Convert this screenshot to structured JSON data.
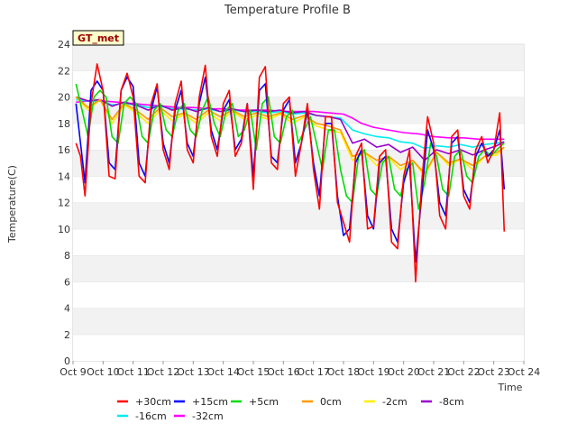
{
  "chart_data": {
    "type": "line",
    "title": "Temperature Profile B",
    "site_label": "GT_met",
    "xlabel": "Time",
    "ylabel": "Temperature(C)",
    "ylim": [
      0,
      24
    ],
    "yticks": [
      0,
      2,
      4,
      6,
      8,
      10,
      12,
      14,
      16,
      18,
      20,
      22,
      24
    ],
    "xlim": [
      9,
      24
    ],
    "xticks": [
      "Oct 9",
      "Oct 10",
      "Oct 11",
      "Oct 12",
      "Oct 13",
      "Oct 14",
      "Oct 15",
      "Oct 16",
      "Oct 17",
      "Oct 18",
      "Oct 19",
      "Oct 20",
      "Oct 21",
      "Oct 22",
      "Oct 23",
      "Oct 24"
    ],
    "grid": "horizontal bands",
    "legend_position": "bottom",
    "x_unit": "day of October",
    "series": [
      {
        "name": "+30cm",
        "color": "#ff0000",
        "x": [
          9.1,
          9.25,
          9.4,
          9.6,
          9.8,
          10.0,
          10.2,
          10.4,
          10.6,
          10.8,
          11.0,
          11.2,
          11.4,
          11.6,
          11.8,
          12.0,
          12.2,
          12.4,
          12.6,
          12.8,
          13.0,
          13.2,
          13.4,
          13.6,
          13.8,
          14.0,
          14.2,
          14.4,
          14.6,
          14.8,
          15.0,
          15.2,
          15.4,
          15.6,
          15.8,
          16.0,
          16.2,
          16.4,
          16.6,
          16.8,
          17.0,
          17.2,
          17.4,
          17.6,
          17.8,
          18.0,
          18.2,
          18.4,
          18.6,
          18.8,
          19.0,
          19.2,
          19.4,
          19.6,
          19.8,
          20.0,
          20.2,
          20.4,
          20.6,
          20.8,
          21.0,
          21.2,
          21.4,
          21.6,
          21.8,
          22.0,
          22.2,
          22.4,
          22.6,
          22.8,
          23.0,
          23.2,
          23.35
        ],
        "y": [
          16.5,
          15.5,
          12.5,
          19.5,
          22.5,
          20.5,
          14.0,
          13.8,
          20.5,
          21.8,
          20.0,
          14.0,
          13.5,
          19.5,
          21.0,
          16.0,
          14.5,
          19.5,
          21.2,
          16.0,
          15.0,
          20.0,
          22.4,
          17.0,
          15.5,
          19.5,
          20.5,
          15.5,
          16.5,
          19.5,
          13.0,
          21.5,
          22.3,
          15.0,
          14.5,
          19.5,
          20.0,
          14.0,
          16.5,
          19.5,
          14.5,
          11.5,
          18.5,
          18.5,
          12.0,
          10.5,
          9.0,
          15.5,
          16.5,
          10.0,
          10.2,
          15.5,
          16.0,
          9.0,
          8.5,
          14.0,
          16.0,
          6.0,
          13.5,
          18.5,
          16.5,
          11.0,
          10.0,
          17.0,
          17.5,
          12.5,
          11.5,
          16.0,
          17.0,
          15.0,
          16.0,
          18.8,
          9.8
        ]
      },
      {
        "name": "+15cm",
        "color": "#0000ff",
        "x": [
          9.1,
          9.25,
          9.4,
          9.6,
          9.8,
          10.0,
          10.2,
          10.4,
          10.6,
          10.8,
          11.0,
          11.2,
          11.4,
          11.6,
          11.8,
          12.0,
          12.2,
          12.4,
          12.6,
          12.8,
          13.0,
          13.2,
          13.4,
          13.6,
          13.8,
          14.0,
          14.2,
          14.4,
          14.6,
          14.8,
          15.0,
          15.2,
          15.4,
          15.6,
          15.8,
          16.0,
          16.2,
          16.4,
          16.6,
          16.8,
          17.0,
          17.2,
          17.4,
          17.6,
          17.8,
          18.0,
          18.2,
          18.4,
          18.6,
          18.8,
          19.0,
          19.2,
          19.4,
          19.6,
          19.8,
          20.0,
          20.2,
          20.4,
          20.6,
          20.8,
          21.0,
          21.2,
          21.4,
          21.6,
          21.8,
          22.0,
          22.2,
          22.4,
          22.6,
          22.8,
          23.0,
          23.2,
          23.35
        ],
        "y": [
          19.5,
          16.5,
          13.5,
          20.5,
          21.2,
          20.5,
          15.0,
          14.5,
          20.5,
          21.5,
          20.8,
          15.0,
          14.0,
          19.0,
          20.8,
          16.5,
          15.0,
          19.0,
          20.5,
          16.5,
          15.5,
          19.5,
          21.5,
          17.5,
          16.0,
          19.0,
          19.8,
          16.0,
          16.8,
          19.5,
          14.0,
          20.5,
          21.0,
          15.5,
          15.0,
          19.0,
          19.8,
          15.0,
          16.5,
          19.0,
          15.0,
          12.5,
          18.0,
          18.0,
          12.5,
          9.5,
          10.0,
          15.0,
          16.0,
          11.0,
          10.0,
          15.0,
          15.5,
          10.0,
          9.0,
          13.5,
          15.0,
          7.5,
          12.5,
          17.5,
          16.0,
          12.0,
          11.0,
          16.5,
          17.0,
          13.0,
          12.0,
          15.5,
          16.5,
          15.5,
          16.0,
          17.5,
          13.0
        ]
      },
      {
        "name": "+5cm",
        "color": "#00dd00",
        "x": [
          9.1,
          9.3,
          9.5,
          9.7,
          9.9,
          10.1,
          10.3,
          10.5,
          10.7,
          10.9,
          11.1,
          11.3,
          11.5,
          11.7,
          11.9,
          12.1,
          12.3,
          12.5,
          12.7,
          12.9,
          13.1,
          13.3,
          13.5,
          13.7,
          13.9,
          14.1,
          14.3,
          14.5,
          14.7,
          14.9,
          15.1,
          15.3,
          15.5,
          15.7,
          15.9,
          16.1,
          16.3,
          16.5,
          16.7,
          16.9,
          17.1,
          17.3,
          17.5,
          17.7,
          17.9,
          18.1,
          18.3,
          18.5,
          18.7,
          18.9,
          19.1,
          19.3,
          19.5,
          19.7,
          19.9,
          20.1,
          20.3,
          20.5,
          20.7,
          20.9,
          21.1,
          21.3,
          21.5,
          21.7,
          21.9,
          22.1,
          22.3,
          22.5,
          22.7,
          22.9,
          23.1,
          23.35
        ],
        "y": [
          21.0,
          19.0,
          17.0,
          20.0,
          20.5,
          20.0,
          17.0,
          16.5,
          19.5,
          20.0,
          19.5,
          17.0,
          16.5,
          19.0,
          19.5,
          17.5,
          17.0,
          19.0,
          19.5,
          17.5,
          17.0,
          19.0,
          20.0,
          18.0,
          17.0,
          19.0,
          19.5,
          17.0,
          17.5,
          19.0,
          16.0,
          19.5,
          20.0,
          17.0,
          16.5,
          18.5,
          19.0,
          16.5,
          17.5,
          18.5,
          16.5,
          14.5,
          17.5,
          17.5,
          14.5,
          12.5,
          12.0,
          15.5,
          16.0,
          13.0,
          12.5,
          15.0,
          15.5,
          13.0,
          12.5,
          14.5,
          15.0,
          11.5,
          13.5,
          16.5,
          15.5,
          13.0,
          12.5,
          15.5,
          16.0,
          14.0,
          13.5,
          15.5,
          16.0,
          15.5,
          16.0,
          16.5
        ]
      },
      {
        "name": "0cm",
        "color": "#ff9900",
        "x": [
          9.1,
          9.5,
          9.9,
          10.3,
          10.7,
          11.1,
          11.5,
          11.9,
          12.3,
          12.7,
          13.1,
          13.5,
          13.9,
          14.3,
          14.7,
          15.1,
          15.5,
          15.9,
          16.3,
          16.7,
          17.1,
          17.5,
          17.9,
          18.3,
          18.7,
          19.1,
          19.5,
          19.9,
          20.3,
          20.7,
          21.1,
          21.5,
          21.9,
          22.3,
          22.7,
          23.1,
          23.35
        ],
        "y": [
          20.0,
          19.2,
          19.8,
          18.3,
          19.5,
          19.0,
          18.3,
          19.2,
          18.5,
          18.8,
          18.3,
          19.0,
          18.5,
          19.0,
          18.5,
          18.8,
          18.5,
          18.8,
          18.3,
          18.6,
          18.0,
          17.8,
          17.5,
          15.5,
          15.8,
          15.2,
          15.5,
          14.8,
          15.2,
          14.2,
          15.8,
          15.0,
          15.3,
          14.8,
          15.5,
          15.8,
          16.2
        ]
      },
      {
        "name": "-2cm",
        "color": "#ffee00",
        "x": [
          9.1,
          9.5,
          9.9,
          10.3,
          10.7,
          11.1,
          11.5,
          11.9,
          12.3,
          12.7,
          13.1,
          13.5,
          13.9,
          14.3,
          14.7,
          15.1,
          15.5,
          15.9,
          16.3,
          16.7,
          17.1,
          17.5,
          17.9,
          18.3,
          18.7,
          19.1,
          19.5,
          19.9,
          20.3,
          20.7,
          21.1,
          21.5,
          21.9,
          22.3,
          22.7,
          23.1,
          23.35
        ],
        "y": [
          20.0,
          19.0,
          19.8,
          18.0,
          19.4,
          18.8,
          18.0,
          19.0,
          18.2,
          18.7,
          18.0,
          18.8,
          18.2,
          18.9,
          18.3,
          18.6,
          18.3,
          18.7,
          18.0,
          18.5,
          17.8,
          17.5,
          17.3,
          15.2,
          15.8,
          14.8,
          15.4,
          14.5,
          15.2,
          14.0,
          15.8,
          14.8,
          15.3,
          14.5,
          15.5,
          15.6,
          16.2
        ]
      },
      {
        "name": "-8cm",
        "color": "#9900cc",
        "x": [
          9.1,
          9.5,
          9.9,
          10.3,
          10.7,
          11.1,
          11.5,
          11.9,
          12.3,
          12.7,
          13.1,
          13.5,
          13.9,
          14.3,
          14.7,
          15.1,
          15.5,
          15.9,
          16.3,
          16.7,
          17.1,
          17.5,
          17.9,
          18.3,
          18.7,
          19.1,
          19.5,
          19.9,
          20.3,
          20.7,
          21.1,
          21.5,
          21.9,
          22.3,
          22.7,
          23.1,
          23.35
        ],
        "y": [
          20.0,
          19.7,
          19.8,
          19.3,
          19.6,
          19.4,
          19.0,
          19.4,
          19.0,
          19.2,
          18.9,
          19.2,
          18.9,
          19.1,
          18.9,
          19.0,
          18.9,
          19.0,
          18.8,
          18.9,
          18.6,
          18.5,
          18.3,
          16.5,
          16.8,
          16.2,
          16.4,
          15.8,
          16.2,
          15.2,
          16.0,
          15.7,
          16.0,
          15.6,
          16.0,
          16.3,
          16.6
        ]
      },
      {
        "name": "-16cm",
        "color": "#00eeee",
        "x": [
          9.1,
          9.5,
          9.9,
          10.3,
          10.7,
          11.1,
          11.5,
          11.9,
          12.3,
          12.7,
          13.1,
          13.5,
          13.9,
          14.3,
          14.7,
          15.1,
          15.5,
          15.9,
          16.3,
          16.7,
          17.1,
          17.5,
          17.9,
          18.3,
          18.7,
          19.1,
          19.5,
          19.9,
          20.3,
          20.7,
          21.1,
          21.5,
          21.9,
          22.3,
          22.7,
          23.1,
          23.35
        ],
        "y": [
          19.8,
          19.7,
          19.7,
          19.4,
          19.5,
          19.4,
          19.2,
          19.3,
          19.1,
          19.1,
          19.0,
          19.1,
          18.9,
          19.0,
          18.9,
          18.9,
          18.8,
          18.9,
          18.7,
          18.8,
          18.6,
          18.5,
          18.4,
          17.5,
          17.2,
          17.0,
          16.9,
          16.6,
          16.5,
          16.1,
          16.3,
          16.2,
          16.4,
          16.2,
          16.4,
          16.5,
          16.6
        ]
      },
      {
        "name": "-32cm",
        "color": "#ff00ff",
        "x": [
          9.1,
          9.5,
          10.0,
          10.5,
          11.0,
          11.5,
          12.0,
          12.5,
          13.0,
          13.5,
          14.0,
          14.5,
          15.0,
          15.5,
          16.0,
          16.5,
          17.0,
          17.5,
          18.0,
          18.3,
          18.6,
          19.0,
          19.5,
          20.0,
          20.5,
          21.0,
          21.5,
          22.0,
          22.5,
          23.0,
          23.35
        ],
        "y": [
          19.6,
          19.7,
          19.7,
          19.6,
          19.5,
          19.4,
          19.3,
          19.2,
          19.2,
          19.1,
          19.1,
          19.0,
          19.0,
          19.0,
          18.9,
          18.9,
          18.9,
          18.8,
          18.7,
          18.4,
          18.0,
          17.7,
          17.5,
          17.3,
          17.2,
          17.0,
          16.9,
          16.9,
          16.8,
          16.8,
          16.8
        ]
      }
    ]
  }
}
